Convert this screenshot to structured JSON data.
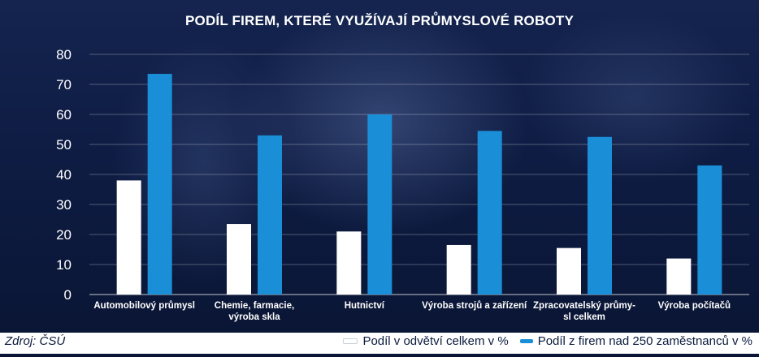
{
  "chart_data": {
    "type": "bar",
    "title": "PODÍL FIREM, KTERÉ VYUŽÍVAJÍ PRŮMYSLOVÉ ROBOTY",
    "categories": [
      [
        "Automobilový průmysl"
      ],
      [
        "Chemie, farmacie,",
        "výroba skla"
      ],
      [
        "Hutnictví"
      ],
      [
        "Výroba strojů a zařízení"
      ],
      [
        "Zpracovatelský průmy-",
        "sl celkem"
      ],
      [
        "Výroba počítačů"
      ]
    ],
    "series": [
      {
        "name": "Podíl v odvětví celkem v %",
        "color": "#ffffff",
        "values": [
          38,
          23.5,
          21,
          16.5,
          15.5,
          12
        ]
      },
      {
        "name": "Podíl z firem nad 250 zaměstnanců v %",
        "color": "#1a8fd8",
        "values": [
          73.5,
          53,
          60,
          54.5,
          52.5,
          43
        ]
      }
    ],
    "ylim": [
      0,
      80
    ],
    "yticks": [
      0,
      10,
      20,
      30,
      40,
      50,
      60,
      70,
      80
    ],
    "grid": true,
    "legend_position": "bottom-right"
  },
  "footer": {
    "source": "Zdroj: ČSÚ"
  }
}
